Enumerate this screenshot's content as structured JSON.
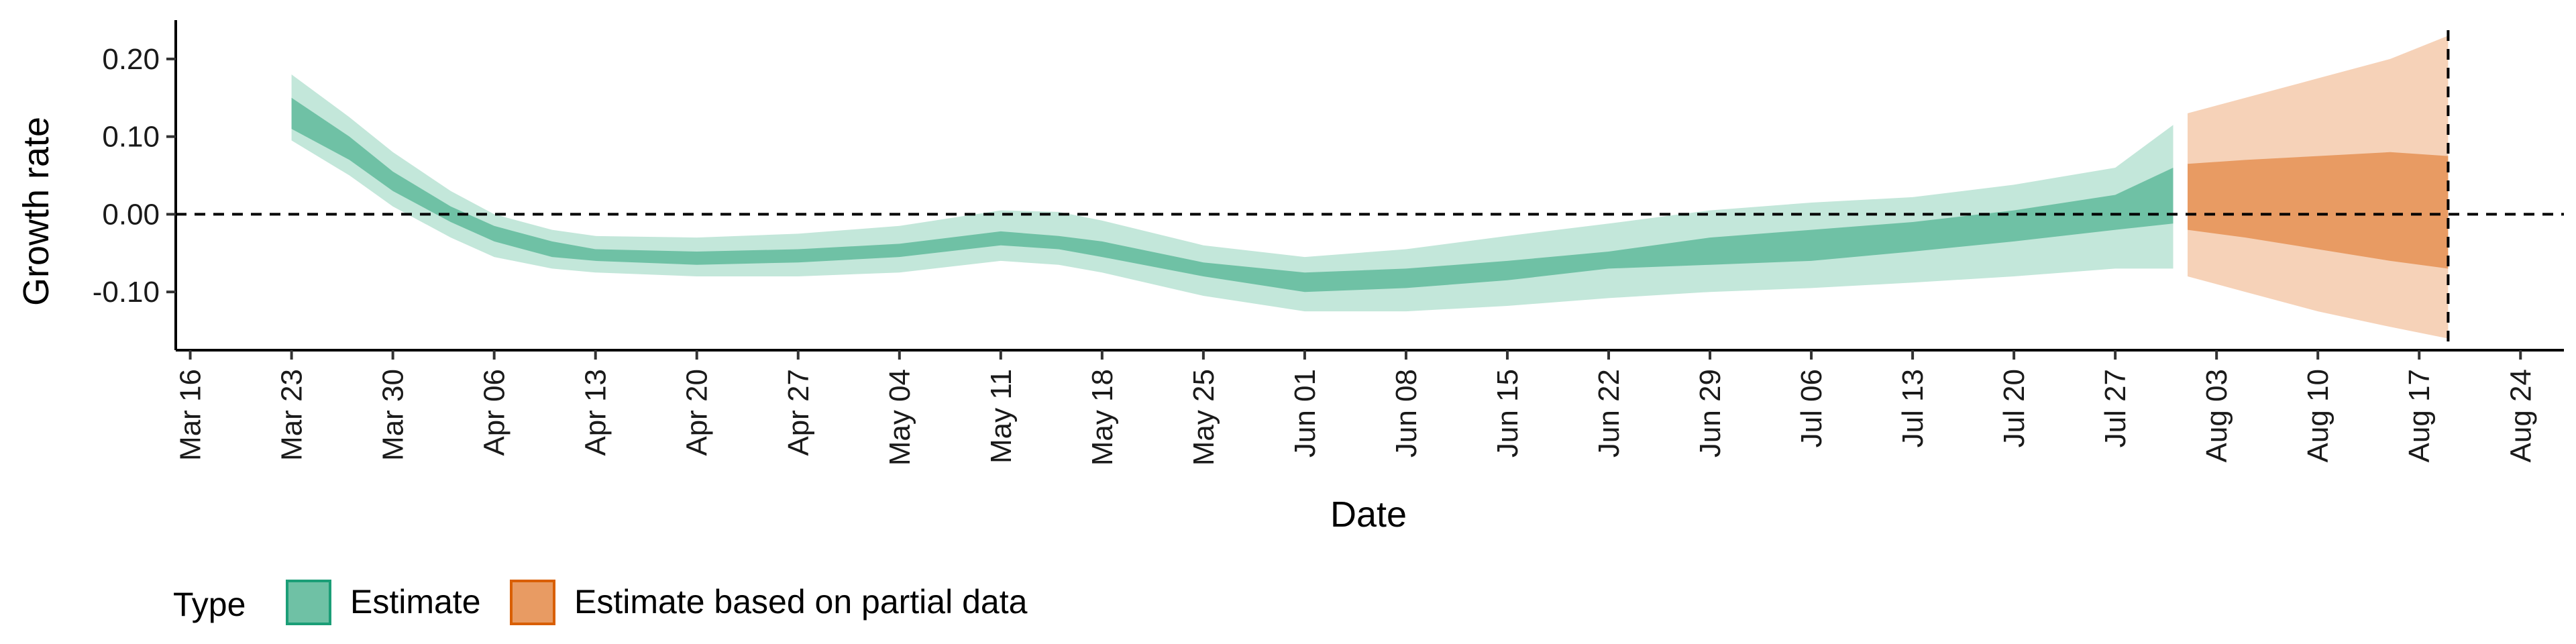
{
  "chart_data": {
    "type": "area",
    "xlabel": "Date",
    "ylabel": "Growth rate",
    "x_ticks": [
      "Mar 16",
      "Mar 23",
      "Mar 30",
      "Apr 06",
      "Apr 13",
      "Apr 20",
      "Apr 27",
      "May 04",
      "May 11",
      "May 18",
      "May 25",
      "Jun 01",
      "Jun 08",
      "Jun 15",
      "Jun 22",
      "Jun 29",
      "Jul 06",
      "Jul 13",
      "Jul 20",
      "Jul 27",
      "Aug 03",
      "Aug 10",
      "Aug 17",
      "Aug 24"
    ],
    "y_ticks": [
      {
        "value": 0.2,
        "label": "0.20"
      },
      {
        "value": 0.1,
        "label": "0.10"
      },
      {
        "value": 0.0,
        "label": "0.00"
      },
      {
        "value": -0.1,
        "label": "-0.10"
      }
    ],
    "xlim": [
      "2020-03-15",
      "2020-08-27"
    ],
    "ylim": [
      -0.175,
      0.25
    ],
    "reference_lines": {
      "horizontal_y": 0.0,
      "vertical_x": "2020-08-19",
      "style": "dashed"
    },
    "legend": {
      "title": "Type",
      "position": "bottom-left",
      "entries": [
        {
          "label": "Estimate",
          "fill": "#6fc1a5",
          "border": "#1b9e77"
        },
        {
          "label": "Estimate based on partial data",
          "fill": "#e89b63",
          "border": "#d95f02"
        }
      ]
    },
    "series": [
      {
        "name": "Estimate",
        "outer_color": "#c3e7da",
        "inner_color": "#6fc1a5",
        "points": [
          {
            "x": "2020-03-23",
            "inner": [
              0.11,
              0.15
            ],
            "outer": [
              0.095,
              0.18
            ]
          },
          {
            "x": "2020-03-27",
            "inner": [
              0.07,
              0.1
            ],
            "outer": [
              0.05,
              0.125
            ]
          },
          {
            "x": "2020-03-30",
            "inner": [
              0.03,
              0.055
            ],
            "outer": [
              0.01,
              0.08
            ]
          },
          {
            "x": "2020-04-03",
            "inner": [
              -0.01,
              0.01
            ],
            "outer": [
              -0.03,
              0.03
            ]
          },
          {
            "x": "2020-04-06",
            "inner": [
              -0.035,
              -0.015
            ],
            "outer": [
              -0.055,
              0.0
            ]
          },
          {
            "x": "2020-04-10",
            "inner": [
              -0.055,
              -0.035
            ],
            "outer": [
              -0.07,
              -0.02
            ]
          },
          {
            "x": "2020-04-13",
            "inner": [
              -0.06,
              -0.045
            ],
            "outer": [
              -0.075,
              -0.028
            ]
          },
          {
            "x": "2020-04-20",
            "inner": [
              -0.065,
              -0.048
            ],
            "outer": [
              -0.08,
              -0.03
            ]
          },
          {
            "x": "2020-04-27",
            "inner": [
              -0.062,
              -0.045
            ],
            "outer": [
              -0.08,
              -0.025
            ]
          },
          {
            "x": "2020-05-04",
            "inner": [
              -0.055,
              -0.038
            ],
            "outer": [
              -0.075,
              -0.015
            ]
          },
          {
            "x": "2020-05-11",
            "inner": [
              -0.04,
              -0.022
            ],
            "outer": [
              -0.06,
              0.005
            ]
          },
          {
            "x": "2020-05-15",
            "inner": [
              -0.045,
              -0.028
            ],
            "outer": [
              -0.065,
              0.003
            ]
          },
          {
            "x": "2020-05-18",
            "inner": [
              -0.055,
              -0.035
            ],
            "outer": [
              -0.075,
              -0.008
            ]
          },
          {
            "x": "2020-05-25",
            "inner": [
              -0.08,
              -0.062
            ],
            "outer": [
              -0.105,
              -0.04
            ]
          },
          {
            "x": "2020-06-01",
            "inner": [
              -0.1,
              -0.075
            ],
            "outer": [
              -0.125,
              -0.055
            ]
          },
          {
            "x": "2020-06-08",
            "inner": [
              -0.095,
              -0.07
            ],
            "outer": [
              -0.125,
              -0.045
            ]
          },
          {
            "x": "2020-06-15",
            "inner": [
              -0.085,
              -0.06
            ],
            "outer": [
              -0.118,
              -0.028
            ]
          },
          {
            "x": "2020-06-22",
            "inner": [
              -0.07,
              -0.048
            ],
            "outer": [
              -0.108,
              -0.012
            ]
          },
          {
            "x": "2020-06-29",
            "inner": [
              -0.065,
              -0.03
            ],
            "outer": [
              -0.1,
              0.005
            ]
          },
          {
            "x": "2020-07-06",
            "inner": [
              -0.06,
              -0.02
            ],
            "outer": [
              -0.095,
              0.015
            ]
          },
          {
            "x": "2020-07-13",
            "inner": [
              -0.048,
              -0.01
            ],
            "outer": [
              -0.088,
              0.022
            ]
          },
          {
            "x": "2020-07-20",
            "inner": [
              -0.035,
              0.005
            ],
            "outer": [
              -0.08,
              0.038
            ]
          },
          {
            "x": "2020-07-27",
            "inner": [
              -0.02,
              0.025
            ],
            "outer": [
              -0.07,
              0.06
            ]
          },
          {
            "x": "2020-07-31",
            "inner": [
              -0.012,
              0.06
            ],
            "outer": [
              -0.07,
              0.115
            ]
          }
        ]
      },
      {
        "name": "Estimate based on partial data",
        "outer_color": "#f6d2b8",
        "inner_color": "#e89b63",
        "points": [
          {
            "x": "2020-08-01",
            "inner": [
              -0.02,
              0.065
            ],
            "outer": [
              -0.08,
              0.13
            ]
          },
          {
            "x": "2020-08-05",
            "inner": [
              -0.03,
              0.07
            ],
            "outer": [
              -0.1,
              0.15
            ]
          },
          {
            "x": "2020-08-10",
            "inner": [
              -0.045,
              0.075
            ],
            "outer": [
              -0.125,
              0.175
            ]
          },
          {
            "x": "2020-08-15",
            "inner": [
              -0.06,
              0.08
            ],
            "outer": [
              -0.145,
              0.2
            ]
          },
          {
            "x": "2020-08-19",
            "inner": [
              -0.07,
              0.075
            ],
            "outer": [
              -0.16,
              0.23
            ]
          }
        ]
      }
    ]
  }
}
